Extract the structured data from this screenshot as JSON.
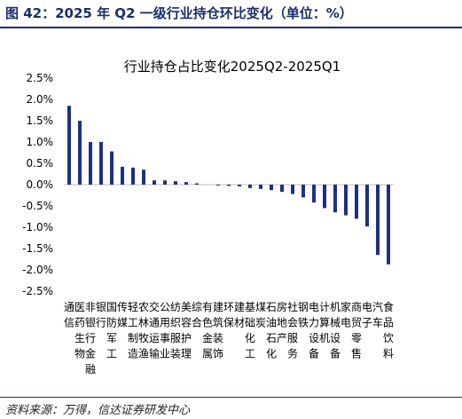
{
  "figure": {
    "title": "图 42：2025 年 Q2 一级行业持仓环比变化（单位：%）",
    "source": "资料来源：万得，信达证券研发中心"
  },
  "chart_data": {
    "type": "bar",
    "title": "行业持仓占比变化2025Q2-2025Q1",
    "xlabel": "",
    "ylabel": "",
    "ylim": [
      -2.5,
      2.5
    ],
    "yticks": [
      "2.5%",
      "2.0%",
      "1.5%",
      "1.0%",
      "0.5%",
      "0.0%",
      "-0.5%",
      "-1.0%",
      "-1.5%",
      "-2.0%",
      "-2.5%"
    ],
    "grid": false,
    "bar_color": "#1f2f86",
    "categories": [
      "通信",
      "医药生物",
      "非银行金融",
      "银行",
      "国防军工",
      "传媒",
      "轻工制造",
      "农林牧渔",
      "交通运输",
      "公用事业",
      "纺织服装",
      "美容护理",
      "综合",
      "有色金属",
      "建筑装饰",
      "环保",
      "建材",
      "基础化工",
      "煤炭",
      "石油石化",
      "房地产",
      "社会服务",
      "钢铁",
      "电力设备",
      "计算机",
      "机械设备",
      "家电",
      "商贸零售",
      "电子",
      "汽车",
      "食品饮料"
    ],
    "values": [
      1.85,
      1.5,
      1.0,
      1.0,
      0.78,
      0.42,
      0.4,
      0.35,
      0.1,
      0.1,
      0.08,
      0.06,
      0.03,
      0.0,
      -0.02,
      -0.03,
      -0.04,
      -0.08,
      -0.1,
      -0.13,
      -0.17,
      -0.22,
      -0.3,
      -0.42,
      -0.55,
      -0.65,
      -0.72,
      -0.8,
      -0.98,
      -1.65,
      -1.87
    ]
  }
}
